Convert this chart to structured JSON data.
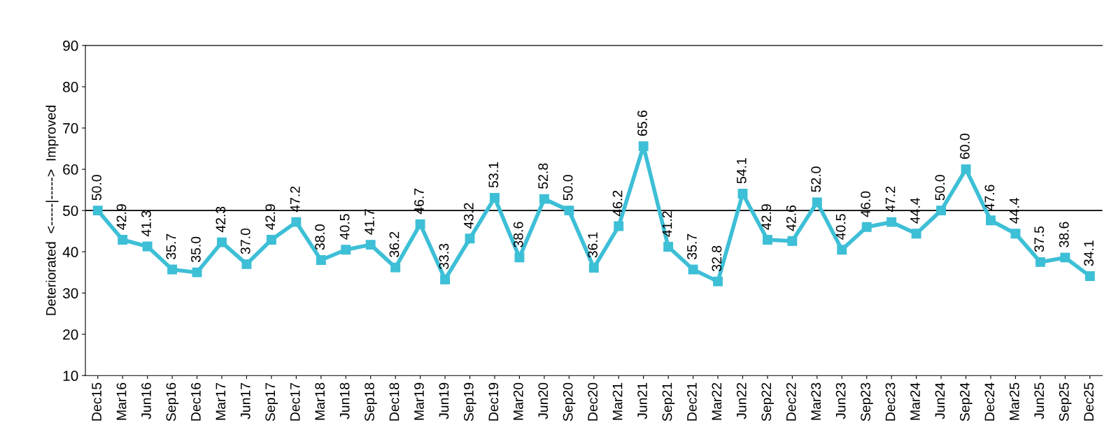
{
  "chart_data": {
    "type": "line",
    "ylabel": "Deteriorated  <-----|----->  Improved",
    "categories": [
      "Dec15",
      "Mar16",
      "Jun16",
      "Sep16",
      "Dec16",
      "Mar17",
      "Jun17",
      "Sep17",
      "Dec17",
      "Mar18",
      "Jun18",
      "Sep18",
      "Dec18",
      "Mar19",
      "Jun19",
      "Sep19",
      "Dec19",
      "Mar20",
      "Jun20",
      "Sep20",
      "Dec20",
      "Mar21",
      "Jun21",
      "Sep21",
      "Dec21",
      "Mar22",
      "Jun22",
      "Sep22",
      "Dec22",
      "Mar23",
      "Jun23",
      "Sep23",
      "Dec23",
      "Mar24",
      "Jun24",
      "Sep24",
      "Dec24",
      "Mar25",
      "Jun25",
      "Sep25",
      "Dec25"
    ],
    "series": [
      {
        "color": "#3dbfd6",
        "value_labels": [
          "50.0",
          "42.9",
          "41.3",
          "35.7",
          "35.0",
          "42.3",
          "37.0",
          "42.9",
          "47.2",
          "38.0",
          "40.5",
          "41.7",
          "36.2",
          "46.7",
          "33.3",
          "43.2",
          "53.1",
          "38.6",
          "52.8",
          "50.0",
          "36.1",
          "46.2",
          "65.6",
          "41.2",
          "35.7",
          "32.8",
          "54.1",
          "42.9",
          "42.6",
          "52.0",
          "40.5",
          "46.0",
          "47.2",
          "44.4",
          "50.0",
          "60.0",
          "47.6",
          "44.4",
          "37.5",
          "38.6",
          "34.1"
        ],
        "values": [
          50.0,
          42.9,
          41.3,
          35.7,
          35.0,
          42.3,
          37.0,
          42.9,
          47.2,
          38.0,
          40.5,
          41.7,
          36.2,
          46.7,
          33.3,
          43.2,
          53.1,
          38.6,
          52.8,
          50.0,
          36.1,
          46.2,
          65.6,
          41.2,
          35.7,
          32.8,
          54.1,
          42.9,
          42.6,
          52.0,
          40.5,
          46.0,
          47.2,
          44.4,
          50.0,
          60.0,
          47.6,
          44.4,
          37.5,
          38.6,
          34.1
        ]
      }
    ],
    "ylim": [
      10,
      90
    ],
    "yticks": [
      10,
      20,
      30,
      40,
      50,
      60,
      70,
      80,
      90
    ],
    "ref_lines": [
      {
        "axis": "y",
        "value": 50,
        "color": "#000000"
      }
    ],
    "marker": "square",
    "line_style": "solid",
    "grid": false,
    "legend": false
  }
}
